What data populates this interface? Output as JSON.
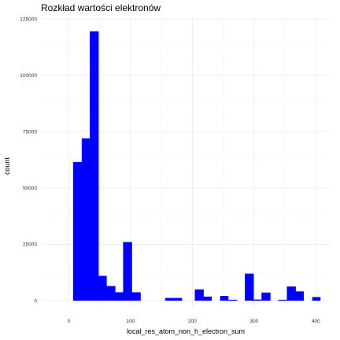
{
  "chart_data": {
    "type": "bar",
    "title": "Rozkład wartości elektronów",
    "xlabel": "local_res_atom_non_h_electron_sum",
    "ylabel": "count",
    "xlim": [
      -45,
      425
    ],
    "ylim": [
      0,
      125000
    ],
    "x_ticks": [
      0,
      100,
      200,
      300,
      400
    ],
    "x_tick_labels": [
      "0",
      "100",
      "200",
      "300",
      "400"
    ],
    "y_ticks": [
      0,
      25000,
      50000,
      75000,
      100000,
      125000
    ],
    "y_tick_labels": [
      "0",
      "25000",
      "50000",
      "75000",
      "100000",
      "125000"
    ],
    "grid": true,
    "bar_color": "#0000ff",
    "bins": [
      {
        "x0": 7,
        "x1": 21,
        "count": 61500
      },
      {
        "x0": 21,
        "x1": 34,
        "count": 72000
      },
      {
        "x0": 34,
        "x1": 48,
        "count": 119500
      },
      {
        "x0": 48,
        "x1": 61,
        "count": 11000
      },
      {
        "x0": 61,
        "x1": 75,
        "count": 6500
      },
      {
        "x0": 75,
        "x1": 88,
        "count": 3700
      },
      {
        "x0": 88,
        "x1": 102,
        "count": 26000
      },
      {
        "x0": 102,
        "x1": 116,
        "count": 3700
      },
      {
        "x0": 156,
        "x1": 170,
        "count": 1200
      },
      {
        "x0": 170,
        "x1": 183,
        "count": 1200
      },
      {
        "x0": 204,
        "x1": 218,
        "count": 5000
      },
      {
        "x0": 218,
        "x1": 231,
        "count": 1800
      },
      {
        "x0": 245,
        "x1": 258,
        "count": 2100
      },
      {
        "x0": 258,
        "x1": 272,
        "count": 400
      },
      {
        "x0": 285,
        "x1": 299,
        "count": 12000
      },
      {
        "x0": 299,
        "x1": 312,
        "count": 500
      },
      {
        "x0": 312,
        "x1": 326,
        "count": 3600
      },
      {
        "x0": 339,
        "x1": 353,
        "count": 400
      },
      {
        "x0": 353,
        "x1": 367,
        "count": 6300
      },
      {
        "x0": 367,
        "x1": 380,
        "count": 4100
      },
      {
        "x0": 394,
        "x1": 407,
        "count": 1600
      }
    ]
  }
}
